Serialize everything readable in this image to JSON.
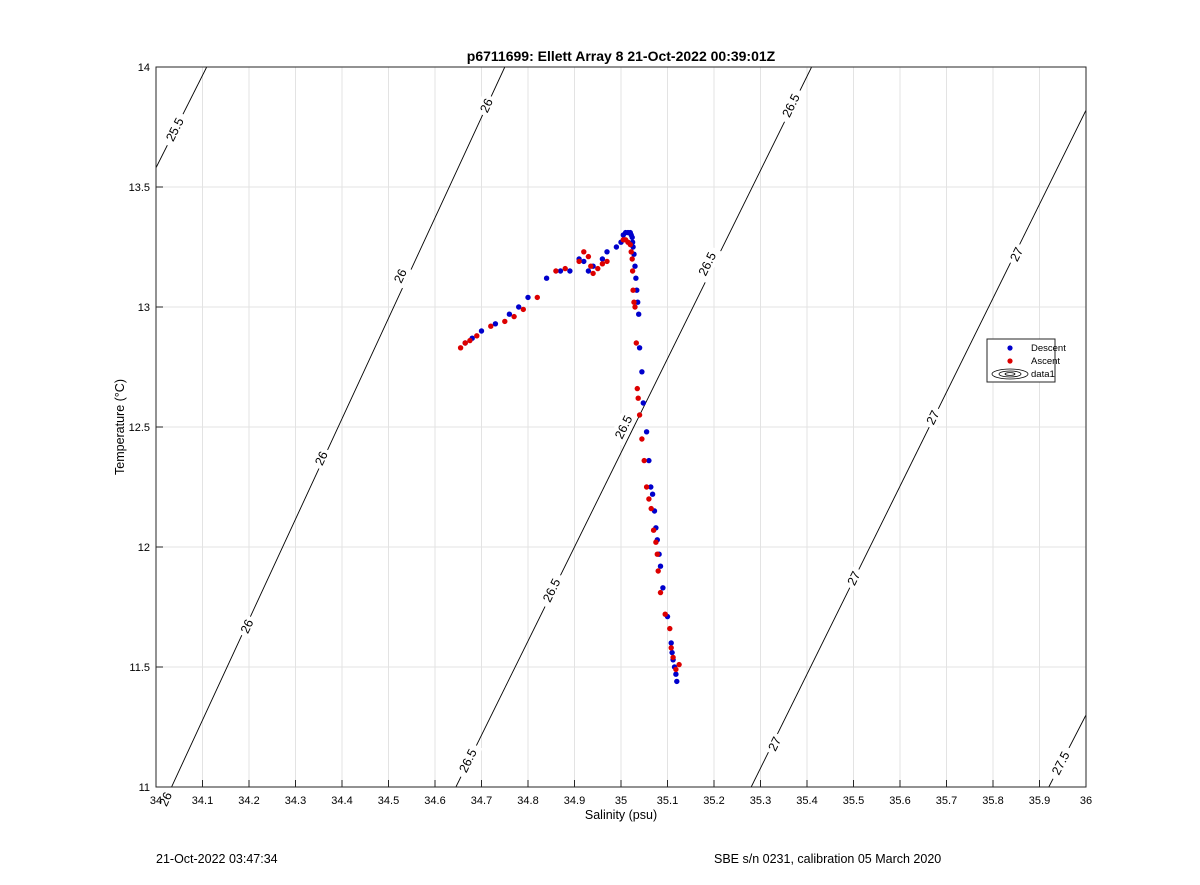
{
  "chart_data": {
    "type": "scatter",
    "title": "p6711699: Ellett Array 8 21-Oct-2022 00:39:01Z",
    "xlabel": "Salinity (psu)",
    "ylabel": "Temperature (°C)",
    "xlim": [
      34,
      36
    ],
    "ylim": [
      11,
      14
    ],
    "xticks": [
      34,
      34.1,
      34.2,
      34.3,
      34.4,
      34.5,
      34.6,
      34.7,
      34.8,
      34.9,
      35,
      35.1,
      35.2,
      35.3,
      35.4,
      35.5,
      35.6,
      35.7,
      35.8,
      35.9,
      36
    ],
    "yticks": [
      11,
      11.5,
      12,
      12.5,
      13,
      13.5,
      14
    ],
    "grid": true,
    "legend": {
      "placement": "right",
      "entries": [
        "Descent",
        "Ascent",
        "data1"
      ]
    },
    "colors": {
      "descent": "#0000cc",
      "ascent": "#dd0000",
      "contour": "#000000",
      "grid": "#e3e3e3"
    },
    "series": [
      {
        "name": "Descent",
        "x": [
          35.12,
          35.118,
          35.115,
          35.112,
          35.11,
          35.108,
          35.1,
          35.09,
          35.085,
          35.082,
          35.078,
          35.075,
          35.072,
          35.068,
          35.064,
          35.06,
          35.055,
          35.048,
          35.045,
          35.04,
          35.038,
          35.036,
          35.034,
          35.032,
          35.03,
          35.028,
          35.026,
          35.025,
          35.024,
          35.022,
          35.02,
          35.015,
          35.01,
          35.005,
          35.0,
          34.99,
          34.97,
          34.96,
          34.94,
          34.93,
          34.92,
          34.91,
          34.89,
          34.87,
          34.84,
          34.8,
          34.78,
          34.76,
          34.73,
          34.7,
          34.68,
          34.665
        ],
        "y": [
          11.44,
          11.47,
          11.5,
          11.53,
          11.56,
          11.6,
          11.71,
          11.83,
          11.92,
          11.97,
          12.03,
          12.08,
          12.15,
          12.22,
          12.25,
          12.36,
          12.48,
          12.6,
          12.73,
          12.83,
          12.97,
          13.02,
          13.07,
          13.12,
          13.17,
          13.22,
          13.25,
          13.27,
          13.29,
          13.3,
          13.31,
          13.31,
          13.31,
          13.3,
          13.27,
          13.25,
          13.23,
          13.2,
          13.17,
          13.15,
          13.19,
          13.2,
          13.15,
          13.15,
          13.12,
          13.04,
          13.0,
          12.97,
          12.93,
          12.9,
          12.87,
          12.85
        ]
      },
      {
        "name": "Ascent",
        "x": [
          35.125,
          35.118,
          35.112,
          35.108,
          35.105,
          35.095,
          35.085,
          35.08,
          35.078,
          35.075,
          35.07,
          35.065,
          35.06,
          35.055,
          35.05,
          35.045,
          35.04,
          35.037,
          35.035,
          35.033,
          35.03,
          35.028,
          35.026,
          35.025,
          35.024,
          35.022,
          35.02,
          35.015,
          35.01,
          35.005,
          34.97,
          34.96,
          34.95,
          34.94,
          34.935,
          34.93,
          34.92,
          34.91,
          34.88,
          34.86,
          34.82,
          34.79,
          34.77,
          34.75,
          34.72,
          34.69,
          34.675,
          34.665,
          34.655
        ],
        "y": [
          11.51,
          11.49,
          11.54,
          11.58,
          11.66,
          11.72,
          11.81,
          11.9,
          11.97,
          12.02,
          12.07,
          12.16,
          12.2,
          12.25,
          12.36,
          12.45,
          12.55,
          12.62,
          12.66,
          12.85,
          13.0,
          13.02,
          13.07,
          13.15,
          13.2,
          13.23,
          13.26,
          13.27,
          13.28,
          13.28,
          13.19,
          13.18,
          13.16,
          13.14,
          13.17,
          13.21,
          13.23,
          13.19,
          13.16,
          13.15,
          13.04,
          12.99,
          12.96,
          12.94,
          12.92,
          12.88,
          12.86,
          12.85,
          12.83
        ]
      }
    ],
    "contours": [
      {
        "label": "25.5",
        "points": [
          [
            34.0,
            13.58
          ],
          [
            34.109,
            14.0
          ]
        ],
        "labels_at": [
          [
            34.04,
            13.74
          ]
        ]
      },
      {
        "label": "26",
        "points": [
          [
            34.0,
            10.86
          ],
          [
            34.75,
            14.0
          ]
        ],
        "labels_at": [
          [
            34.02,
            10.95
          ],
          [
            34.195,
            11.67
          ],
          [
            34.355,
            12.37
          ],
          [
            34.525,
            13.13
          ],
          [
            34.71,
            13.84
          ]
        ]
      },
      {
        "label": "26.5",
        "points": [
          [
            34.645,
            11.0
          ],
          [
            35.41,
            14.0
          ]
        ],
        "labels_at": [
          [
            34.67,
            11.11
          ],
          [
            34.85,
            11.82
          ],
          [
            35.005,
            12.5
          ],
          [
            35.185,
            13.18
          ],
          [
            35.365,
            13.84
          ]
        ]
      },
      {
        "label": "27",
        "points": [
          [
            35.28,
            11.0
          ],
          [
            36.0,
            13.82
          ]
        ],
        "labels_at": [
          [
            35.33,
            11.18
          ],
          [
            35.5,
            11.87
          ],
          [
            35.67,
            12.54
          ],
          [
            35.85,
            13.22
          ]
        ]
      },
      {
        "label": "27.5",
        "points": [
          [
            35.92,
            11.0
          ],
          [
            36.0,
            11.3
          ]
        ],
        "labels_at": [
          [
            35.945,
            11.1
          ]
        ]
      }
    ]
  },
  "footer": {
    "timestamp": "21-Oct-2022 03:47:34",
    "instrument": "SBE s/n 0231, calibration 05 March 2020"
  }
}
